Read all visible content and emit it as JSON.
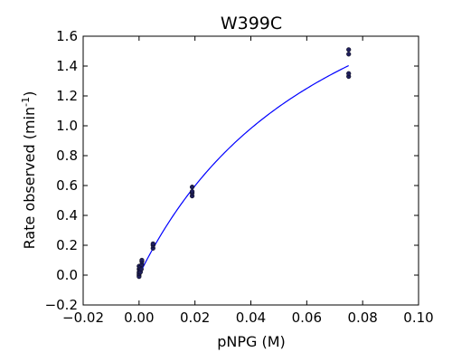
{
  "chart_data": {
    "type": "scatter",
    "title": "W399C",
    "xlabel": "pNPG (M)",
    "ylabel": "Rate observed (min",
    "ylabel_superscript": "-1",
    "ylabel_suffix": ")",
    "xlim": [
      -0.02,
      0.1
    ],
    "ylim": [
      -0.2,
      1.6
    ],
    "x_ticks": [
      -0.02,
      0.0,
      0.02,
      0.04,
      0.06,
      0.08,
      0.1
    ],
    "x_tick_labels": [
      "−0.02",
      "0.00",
      "0.02",
      "0.04",
      "0.06",
      "0.08",
      "0.10"
    ],
    "y_ticks": [
      -0.2,
      0.0,
      0.2,
      0.4,
      0.6,
      0.8,
      1.0,
      1.2,
      1.4,
      1.6
    ],
    "y_tick_labels": [
      "−0.2",
      "0.0",
      "0.2",
      "0.4",
      "0.6",
      "0.8",
      "1.0",
      "1.2",
      "1.4",
      "1.6"
    ],
    "grid": false,
    "points": [
      {
        "x": 0.0,
        "y": 0.0
      },
      {
        "x": 0.0,
        "y": -0.01
      },
      {
        "x": 0.0,
        "y": 0.01
      },
      {
        "x": 0.0,
        "y": 0.02
      },
      {
        "x": 0.0,
        "y": 0.04
      },
      {
        "x": 0.0,
        "y": 0.06
      },
      {
        "x": 0.0003,
        "y": 0.03
      },
      {
        "x": 0.0003,
        "y": 0.05
      },
      {
        "x": 0.0005,
        "y": 0.02
      },
      {
        "x": 0.0008,
        "y": 0.04
      },
      {
        "x": 0.001,
        "y": 0.07
      },
      {
        "x": 0.001,
        "y": 0.09
      },
      {
        "x": 0.001,
        "y": 0.1
      },
      {
        "x": 0.005,
        "y": 0.18
      },
      {
        "x": 0.005,
        "y": 0.2
      },
      {
        "x": 0.005,
        "y": 0.21
      },
      {
        "x": 0.019,
        "y": 0.53
      },
      {
        "x": 0.019,
        "y": 0.55
      },
      {
        "x": 0.019,
        "y": 0.56
      },
      {
        "x": 0.019,
        "y": 0.59
      },
      {
        "x": 0.075,
        "y": 1.33
      },
      {
        "x": 0.075,
        "y": 1.35
      },
      {
        "x": 0.075,
        "y": 1.48
      },
      {
        "x": 0.075,
        "y": 1.51
      }
    ],
    "fit": {
      "model": "michaelis-menten",
      "vmax": 2.75,
      "km": 0.072,
      "x_range": [
        0.0,
        0.075
      ]
    },
    "colors": {
      "points": "#1f1f5c",
      "fit_line": "#0000ff",
      "axes": "#000000"
    }
  }
}
